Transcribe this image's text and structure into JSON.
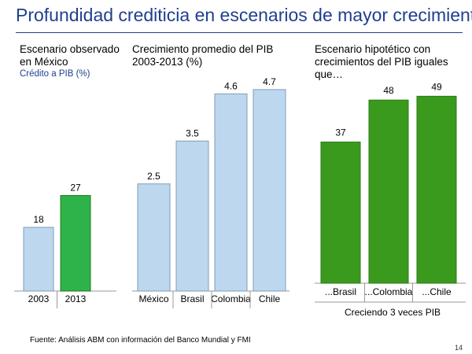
{
  "page": {
    "title": "Profundidad crediticia en escenarios de mayor crecimiento",
    "footnote": "Fuente: Análisis ABM con información del Banco Mundial y FMI",
    "page_number": "14"
  },
  "colors": {
    "title_blue": "#1f3f8f",
    "light_blue_bar": "#bdd7ee",
    "bar_border": "#7f9db9",
    "green_bar": "#2db34a",
    "dark_green_bar": "#3a9a1e",
    "axis": "#999999"
  },
  "chart_data": [
    {
      "type": "bar",
      "title_line1": "Escenario observado",
      "title_line2": "en México",
      "subtitle": "Crédito a PIB (%)",
      "categories": [
        "2003",
        "2013"
      ],
      "values": [
        18,
        27
      ],
      "value_labels": [
        "18",
        "27"
      ],
      "bar_colors": [
        "#bdd7ee",
        "#2db34a"
      ]
    },
    {
      "type": "bar",
      "title_line1": "Crecimiento promedio del PIB",
      "title_line2": "2003-2013 (%)",
      "categories": [
        "México",
        "Brasil",
        "Colombia",
        "Chile"
      ],
      "values": [
        2.5,
        3.5,
        4.6,
        4.7
      ],
      "value_labels": [
        "2.5",
        "3.5",
        "4.6",
        "4.7"
      ],
      "bar_colors": [
        "#bdd7ee",
        "#bdd7ee",
        "#bdd7ee",
        "#bdd7ee"
      ]
    },
    {
      "type": "bar",
      "title_line1": "Escenario hipotético con",
      "title_line2": "crecimientos del PIB iguales",
      "title_line3": "que…",
      "categories": [
        "...Brasil",
        "...Colombia",
        "...Chile"
      ],
      "values": [
        37,
        48,
        49
      ],
      "value_labels": [
        "37",
        "48",
        "49"
      ],
      "bar_colors": [
        "#3a9a1e",
        "#3a9a1e",
        "#3a9a1e"
      ],
      "note": "Creciendo 3 veces PIB"
    }
  ]
}
